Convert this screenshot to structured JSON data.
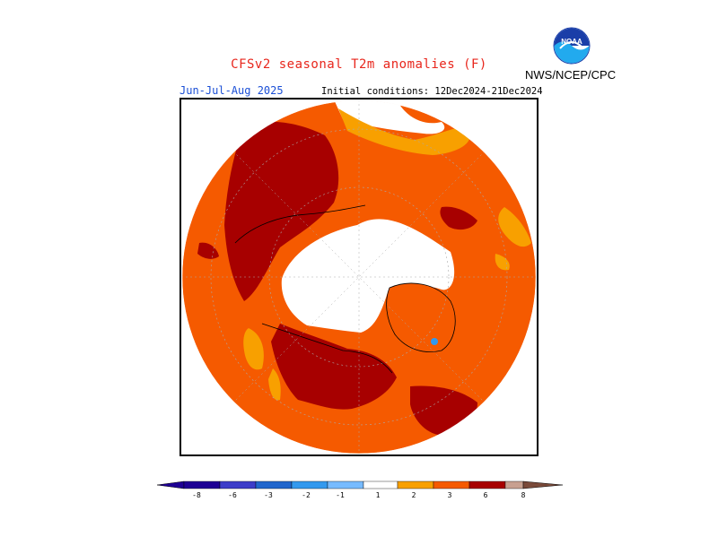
{
  "header": {
    "title": "CFSv2 seasonal T2m anomalies (F)",
    "period": "Jun-Jul-Aug 2025",
    "initial_conditions": "Initial conditions: 12Dec2024-21Dec2024",
    "organization": "NWS/NCEP/CPC",
    "logo_text": "NOAA"
  },
  "colors": {
    "title": "#e8261c",
    "period": "#1b4fd6",
    "anom_1_2": "#f8a000",
    "anom_2_3": "#f55a00",
    "anom_3_6": "#a70000",
    "anom_6_8": "#c8a090",
    "anom_gt_8": "#7a4a3a"
  },
  "legend": {
    "levels": [
      "-8",
      "-6",
      "-3",
      "-2",
      "-1",
      "1",
      "2",
      "3",
      "6",
      "8"
    ],
    "colors": [
      "#1e0094",
      "#3d3dc9",
      "#2266cc",
      "#3399ee",
      "#77bbff",
      "#ffffff",
      "#f8a000",
      "#f55a00",
      "#e8301a",
      "#a70000",
      "#c8a090",
      "#7a4a3a"
    ]
  }
}
